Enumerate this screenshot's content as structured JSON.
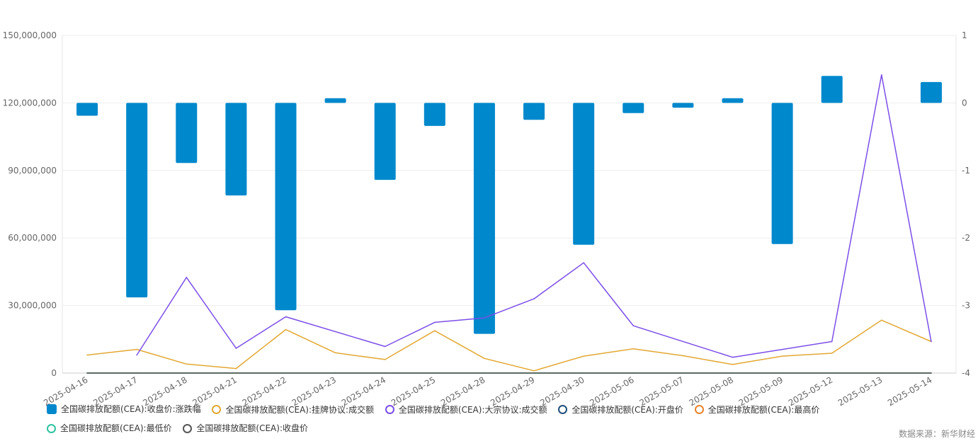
{
  "chart_data": {
    "type": "bar+line",
    "categories": [
      "2025-04-16",
      "2025-04-17",
      "2025-04-18",
      "2025-04-21",
      "2025-04-22",
      "2025-04-23",
      "2025-04-24",
      "2025-04-25",
      "2025-04-28",
      "2025-04-29",
      "2025-04-30",
      "2025-05-06",
      "2025-05-07",
      "2025-05-08",
      "2025-05-09",
      "2025-05-12",
      "2025-05-13",
      "2025-05-14"
    ],
    "left_axis": {
      "min": 0,
      "max": 150000000,
      "ticks": [
        "0",
        "30,000,000",
        "60,000,000",
        "90,000,000",
        "120,000,000",
        "150,000,000"
      ],
      "tick_values": [
        0,
        30000000,
        60000000,
        90000000,
        120000000,
        150000000
      ]
    },
    "right_axis": {
      "min": -4,
      "max": 1,
      "ticks": [
        "-4",
        "-3",
        "-2",
        "-1",
        "0",
        "1"
      ],
      "tick_values": [
        -4,
        -3,
        -2,
        -1,
        0,
        1
      ]
    },
    "series": [
      {
        "name": "全国碳排放配额(CEA):收盘价:涨跌幅",
        "type": "bar",
        "axis": "right",
        "color": "#0088cc",
        "values": [
          -0.19,
          -2.88,
          -0.89,
          -1.37,
          -3.07,
          0.07,
          -1.14,
          -0.34,
          -3.42,
          -0.25,
          -2.1,
          -0.15,
          -0.07,
          0.07,
          -2.09,
          0.4,
          null,
          0.31
        ]
      },
      {
        "name": "全国碳排放配额(CEA):挂牌协议:成交额",
        "type": "line",
        "axis": "left",
        "color": "#e2a833",
        "values": [
          8000000,
          10500000,
          4000000,
          2000000,
          19300000,
          9000000,
          6000000,
          18800000,
          6500000,
          1000000,
          7500000,
          10800000,
          7700000,
          3800000,
          7500000,
          8800000,
          23500000,
          14000000
        ]
      },
      {
        "name": "全国碳排放配额(CEA):大宗协议:成交额",
        "type": "line",
        "axis": "left",
        "color": "#7b4ee8",
        "values": [
          null,
          8000000,
          42500000,
          11000000,
          25000000,
          null,
          11800000,
          22500000,
          24500000,
          33000000,
          49000000,
          21000000,
          null,
          7000000,
          null,
          14000000,
          132500000,
          14000000
        ]
      },
      {
        "name": "全国碳排放配额(CEA):开盘价",
        "type": "line",
        "axis": "left",
        "color": "#1f4e79",
        "values": [
          0,
          0,
          0,
          0,
          0,
          0,
          0,
          0,
          0,
          0,
          0,
          0,
          0,
          0,
          0,
          0,
          0,
          0
        ]
      },
      {
        "name": "全国碳排放配额(CEA):最高价",
        "type": "line",
        "axis": "left",
        "color": "#e8842c",
        "values": [
          0,
          0,
          0,
          0,
          0,
          0,
          0,
          0,
          0,
          0,
          0,
          0,
          0,
          0,
          0,
          0,
          0,
          0
        ]
      },
      {
        "name": "全国碳排放配额(CEA):最低价",
        "type": "line",
        "axis": "left",
        "color": "#2ec4a0",
        "values": [
          0,
          0,
          0,
          0,
          0,
          0,
          0,
          0,
          0,
          0,
          0,
          0,
          0,
          0,
          0,
          0,
          0,
          0
        ]
      },
      {
        "name": "全国碳排放配额(CEA):收盘价",
        "type": "line",
        "axis": "left",
        "color": "#555555",
        "values": [
          0,
          0,
          0,
          0,
          0,
          0,
          0,
          0,
          0,
          0,
          0,
          0,
          0,
          0,
          0,
          0,
          0,
          0
        ]
      }
    ],
    "grid": true,
    "legend_position": "bottom-left"
  },
  "legend": {
    "items": [
      {
        "label": "全国碳排放配额(CEA):收盘价:涨跌幅",
        "icon": "box",
        "color": "#0088cc"
      },
      {
        "label": "全国碳排放配额(CEA):挂牌协议:成交额",
        "icon": "ring",
        "color": "#e2a833"
      },
      {
        "label": "全国碳排放配额(CEA):大宗协议:成交额",
        "icon": "ring",
        "color": "#7b4ee8"
      },
      {
        "label": "全国碳排放配额(CEA):开盘价",
        "icon": "ring",
        "color": "#1f4e79"
      },
      {
        "label": "全国碳排放配额(CEA):最高价",
        "icon": "ring",
        "color": "#e8842c"
      },
      {
        "label": "全国碳排放配额(CEA):最低价",
        "icon": "ring",
        "color": "#2ec4a0"
      },
      {
        "label": "全国碳排放配额(CEA):收盘价",
        "icon": "ring",
        "color": "#555555"
      }
    ]
  },
  "source": "数据来源：新华财经"
}
